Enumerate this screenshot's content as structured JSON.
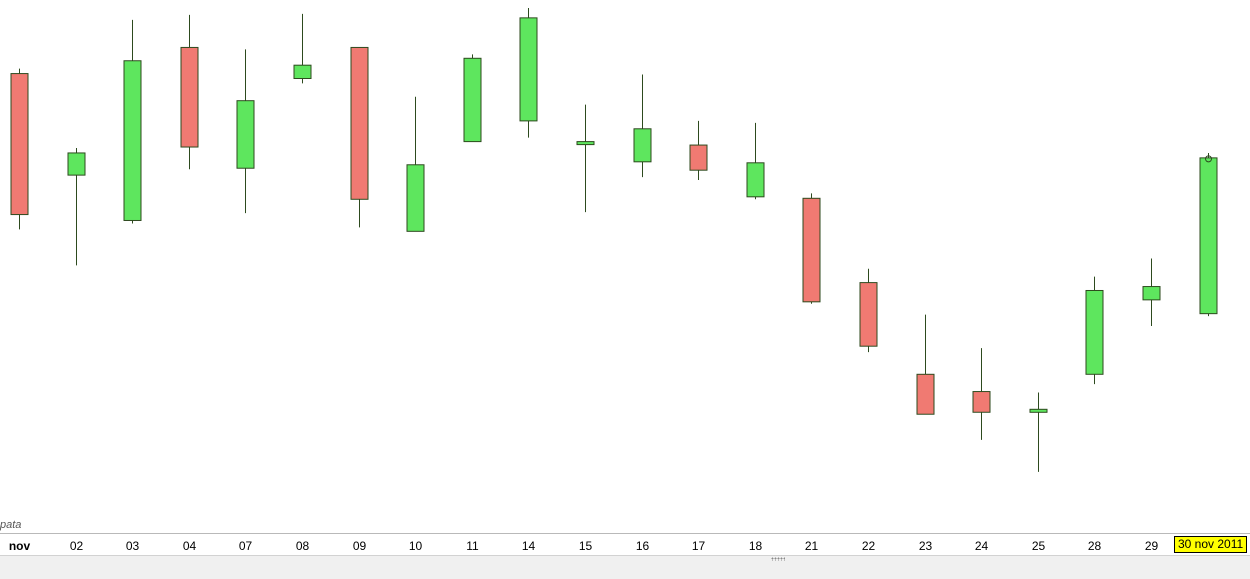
{
  "watermark": "pata",
  "current_date_label": "30 nov 2011",
  "colors": {
    "up": "#5ee65e",
    "down": "#f07a72",
    "outline": "#2d4a1e",
    "wick": "#2d4a1e",
    "date_highlight": "#ffff00"
  },
  "chart_data": {
    "type": "candlestick",
    "y_axis_shown": false,
    "grid": false,
    "ylim": [
      0,
      1000
    ],
    "x_tick_labels": [
      "nov",
      "02",
      "03",
      "04",
      "07",
      "08",
      "09",
      "10",
      "11",
      "14",
      "15",
      "16",
      "17",
      "18",
      "21",
      "22",
      "23",
      "24",
      "25",
      "28",
      "29"
    ],
    "candles": [
      {
        "label": "nov",
        "open": 867,
        "high": 877,
        "low": 551,
        "close": 581
      },
      {
        "label": "02",
        "open": 661,
        "high": 716,
        "low": 478,
        "close": 706
      },
      {
        "label": "03",
        "open": 569,
        "high": 976,
        "low": 563,
        "close": 893
      },
      {
        "label": "04",
        "open": 920,
        "high": 986,
        "low": 673,
        "close": 718
      },
      {
        "label": "07",
        "open": 675,
        "high": 916,
        "low": 584,
        "close": 812
      },
      {
        "label": "08",
        "open": 857,
        "high": 988,
        "low": 847,
        "close": 884
      },
      {
        "label": "09",
        "open": 920,
        "high": 920,
        "low": 555,
        "close": 612
      },
      {
        "label": "10",
        "open": 547,
        "high": 820,
        "low": 547,
        "close": 682
      },
      {
        "label": "11",
        "open": 729,
        "high": 906,
        "low": 729,
        "close": 898
      },
      {
        "label": "14",
        "open": 771,
        "high": 1000,
        "low": 737,
        "close": 980
      },
      {
        "label": "15",
        "open": 725,
        "high": 804,
        "low": 586,
        "close": 729
      },
      {
        "label": "16",
        "open": 688,
        "high": 865,
        "low": 657,
        "close": 755
      },
      {
        "label": "17",
        "open": 722,
        "high": 771,
        "low": 651,
        "close": 671
      },
      {
        "label": "18",
        "open": 617,
        "high": 767,
        "low": 612,
        "close": 686
      },
      {
        "label": "21",
        "open": 614,
        "high": 624,
        "low": 400,
        "close": 404
      },
      {
        "label": "22",
        "open": 443,
        "high": 471,
        "low": 302,
        "close": 314
      },
      {
        "label": "23",
        "open": 257,
        "high": 378,
        "low": 176,
        "close": 176
      },
      {
        "label": "24",
        "open": 222,
        "high": 310,
        "low": 124,
        "close": 180
      },
      {
        "label": "25",
        "open": 180,
        "high": 220,
        "low": 59,
        "close": 186
      },
      {
        "label": "28",
        "open": 257,
        "high": 455,
        "low": 237,
        "close": 427
      },
      {
        "label": "29",
        "open": 408,
        "high": 492,
        "low": 355,
        "close": 435
      },
      {
        "label": "30 nov 2011",
        "open": 380,
        "high": 706,
        "low": 375,
        "close": 696
      }
    ]
  }
}
